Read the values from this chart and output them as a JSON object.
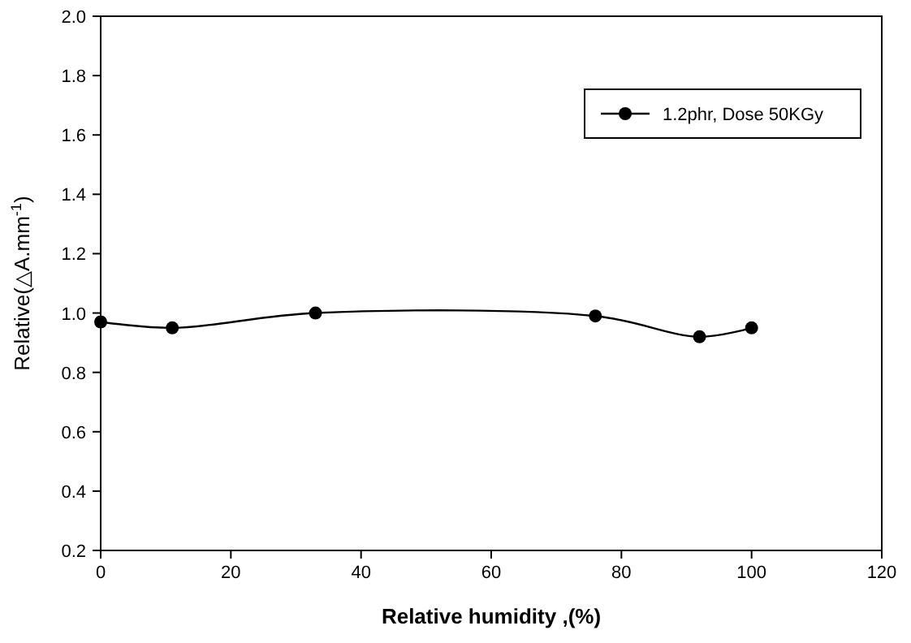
{
  "chart_data": {
    "type": "line",
    "xlabel": "Relative humidity ,(%)",
    "ylabel": "Relative(△A.mm$^{-1}$)",
    "x": [
      0,
      11,
      33,
      76,
      92,
      100
    ],
    "series": [
      {
        "name": "1.2phr, Dose 50KGy",
        "color": "#000000",
        "values": [
          0.97,
          0.95,
          1.0,
          0.99,
          0.92,
          0.95
        ]
      }
    ],
    "xlim": [
      0,
      120
    ],
    "xticks": [
      0,
      20,
      40,
      60,
      80,
      100,
      120
    ],
    "ylim": [
      0.2,
      2.0
    ],
    "yticks": [
      0.2,
      0.4,
      0.6,
      0.8,
      {
        "value": 1,
        "label": "1.0"
      },
      1.2,
      1.4,
      1.6,
      1.8,
      {
        "value": 2,
        "label": "2.0"
      }
    ],
    "marker": "circle",
    "legend": "top right",
    "grid": false
  }
}
